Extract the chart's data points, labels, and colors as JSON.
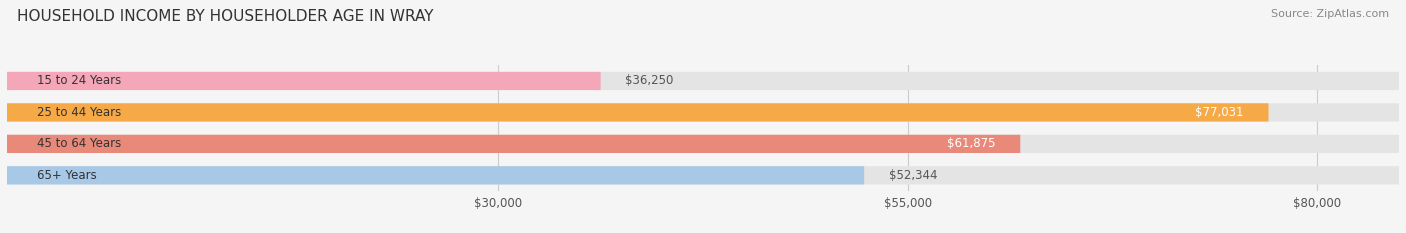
{
  "title": "HOUSEHOLD INCOME BY HOUSEHOLDER AGE IN WRAY",
  "source": "Source: ZipAtlas.com",
  "categories": [
    "15 to 24 Years",
    "25 to 44 Years",
    "45 to 64 Years",
    "65+ Years"
  ],
  "values": [
    36250,
    77031,
    61875,
    52344
  ],
  "bar_colors": [
    "#f4a7b9",
    "#f5a947",
    "#e8897a",
    "#a8c8e8"
  ],
  "bar_bg_color": "#e4e4e4",
  "x_ticks": [
    30000,
    55000,
    80000
  ],
  "x_tick_labels": [
    "$30,000",
    "$55,000",
    "$80,000"
  ],
  "xlim": [
    0,
    85000
  ],
  "bar_height": 0.58,
  "background_color": "#f5f5f5",
  "title_fontsize": 11,
  "source_fontsize": 8,
  "label_fontsize": 8.5,
  "tick_fontsize": 8.5,
  "value_labels": [
    "$36,250",
    "$77,031",
    "$61,875",
    "$52,344"
  ],
  "value_inside": [
    false,
    true,
    true,
    false
  ]
}
